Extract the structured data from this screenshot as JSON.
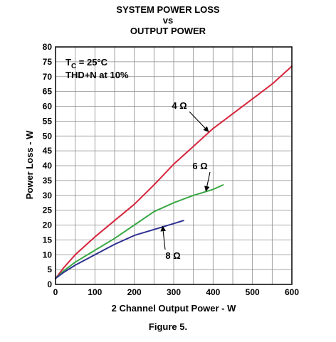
{
  "chart_data": {
    "type": "line",
    "title": [
      "SYSTEM POWER LOSS",
      "vs",
      "OUTPUT POWER"
    ],
    "xlabel": "2 Channel Output Power - W",
    "ylabel": "Power Loss - W",
    "xlim": [
      0,
      600
    ],
    "ylim": [
      0,
      80
    ],
    "xticks": [
      0,
      100,
      200,
      300,
      400,
      500,
      600
    ],
    "yticks": [
      0,
      5,
      10,
      15,
      20,
      25,
      30,
      35,
      40,
      45,
      50,
      55,
      60,
      65,
      70,
      75,
      80
    ],
    "grid": true,
    "conditions": [
      "T",
      "C",
      " = 25°C",
      "THD+N at 10%"
    ],
    "caption": "Figure 5.",
    "series": [
      {
        "name": "4 Ω",
        "color": "#d7263d",
        "x": [
          0,
          20,
          50,
          100,
          150,
          200,
          250,
          300,
          350,
          400,
          450,
          500,
          550,
          600
        ],
        "y": [
          2,
          5.5,
          10,
          16,
          21.5,
          27,
          33.5,
          40.5,
          46.5,
          52.5,
          57.5,
          62.5,
          67.5,
          73.5
        ]
      },
      {
        "name": "6 Ω",
        "color": "#3aa845",
        "x": [
          0,
          20,
          50,
          100,
          150,
          200,
          250,
          300,
          350,
          400,
          425
        ],
        "y": [
          2,
          4.5,
          7.5,
          11.5,
          15.5,
          20,
          24.5,
          27.5,
          30,
          32,
          33.5
        ]
      },
      {
        "name": "8 Ω",
        "color": "#2e3192",
        "x": [
          0,
          20,
          50,
          100,
          150,
          200,
          250,
          300,
          325
        ],
        "y": [
          2,
          4,
          6.5,
          10,
          13.5,
          16.5,
          18.5,
          20.5,
          21.5
        ]
      }
    ],
    "annotations": [
      {
        "label": "4 Ω",
        "series": 0
      },
      {
        "label": "6 Ω",
        "series": 1
      },
      {
        "label": "8 Ω",
        "series": 2
      }
    ]
  }
}
